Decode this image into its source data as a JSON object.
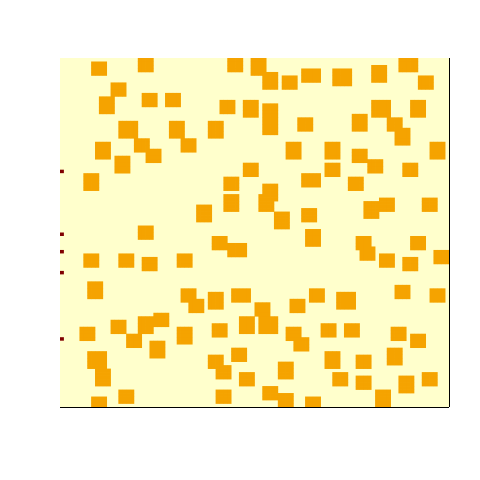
{
  "chart_data": {
    "type": "heatmap",
    "title": "",
    "xlabel": "",
    "ylabel": "",
    "grid": false,
    "legend": "none",
    "nrows": 100,
    "ncols": 100,
    "colors": {
      "background": "#ffffff",
      "empty": "#ffffcc",
      "filled": "#f5a300",
      "edge": "#800000",
      "axis": "#000000"
    },
    "edge_rows": [
      32,
      50,
      55,
      61,
      80
    ],
    "blobs": [
      [
        100,
        68
      ],
      [
        146,
        64
      ],
      [
        236,
        63
      ],
      [
        258,
        67
      ],
      [
        270,
        80
      ],
      [
        291,
        82
      ],
      [
        311,
        75
      ],
      [
        342,
        77
      ],
      [
        379,
        74
      ],
      [
        408,
        64
      ],
      [
        426,
        83
      ],
      [
        120,
        90
      ],
      [
        107,
        105
      ],
      [
        150,
        100
      ],
      [
        174,
        100
      ],
      [
        229,
        106
      ],
      [
        252,
        108
      ],
      [
        271,
        112
      ],
      [
        381,
        108
      ],
      [
        418,
        108
      ],
      [
        128,
        130
      ],
      [
        142,
        145
      ],
      [
        176,
        130
      ],
      [
        188,
        145
      ],
      [
        214,
        130
      ],
      [
        269,
        126
      ],
      [
        304,
        125
      ],
      [
        360,
        122
      ],
      [
        395,
        125
      ],
      [
        402,
        137
      ],
      [
        104,
        150
      ],
      [
        122,
        165
      ],
      [
        155,
        155
      ],
      [
        292,
        150
      ],
      [
        331,
        150
      ],
      [
        361,
        155
      ],
      [
        376,
        167
      ],
      [
        411,
        170
      ],
      [
        437,
        150
      ],
      [
        92,
        182
      ],
      [
        230,
        183
      ],
      [
        250,
        170
      ],
      [
        271,
        193
      ],
      [
        311,
        180
      ],
      [
        331,
        170
      ],
      [
        356,
        183
      ],
      [
        203,
        213
      ],
      [
        232,
        203
      ],
      [
        266,
        203
      ],
      [
        282,
        220
      ],
      [
        309,
        215
      ],
      [
        372,
        210
      ],
      [
        388,
        205
      ],
      [
        428,
        205
      ],
      [
        147,
        233
      ],
      [
        221,
        243
      ],
      [
        237,
        250
      ],
      [
        312,
        238
      ],
      [
        363,
        243
      ],
      [
        366,
        253
      ],
      [
        418,
        243
      ],
      [
        90,
        260
      ],
      [
        127,
        260
      ],
      [
        150,
        263
      ],
      [
        185,
        260
      ],
      [
        387,
        260
      ],
      [
        410,
        263
      ],
      [
        440,
        257
      ],
      [
        96,
        290
      ],
      [
        187,
        296
      ],
      [
        196,
        306
      ],
      [
        215,
        300
      ],
      [
        241,
        296
      ],
      [
        261,
        310
      ],
      [
        296,
        305
      ],
      [
        315,
        296
      ],
      [
        346,
        300
      ],
      [
        404,
        292
      ],
      [
        437,
        295
      ],
      [
        88,
        333
      ],
      [
        117,
        326
      ],
      [
        135,
        340
      ],
      [
        146,
        325
      ],
      [
        162,
        320
      ],
      [
        186,
        335
      ],
      [
        219,
        330
      ],
      [
        246,
        325
      ],
      [
        268,
        325
      ],
      [
        292,
        333
      ],
      [
        302,
        345
      ],
      [
        328,
        330
      ],
      [
        350,
        330
      ],
      [
        398,
        333
      ],
      [
        418,
        340
      ],
      [
        97,
        360
      ],
      [
        157,
        350
      ],
      [
        216,
        362
      ],
      [
        238,
        355
      ],
      [
        285,
        370
      ],
      [
        333,
        360
      ],
      [
        363,
        362
      ],
      [
        394,
        357
      ],
      [
        430,
        380
      ],
      [
        103,
        378
      ],
      [
        222,
        372
      ],
      [
        248,
        380
      ],
      [
        341,
        380
      ],
      [
        365,
        382
      ],
      [
        405,
        385
      ],
      [
        98,
        404
      ],
      [
        126,
        396
      ],
      [
        222,
        396
      ],
      [
        270,
        394
      ],
      [
        287,
        402
      ],
      [
        312,
        404
      ],
      [
        384,
        398
      ]
    ]
  }
}
